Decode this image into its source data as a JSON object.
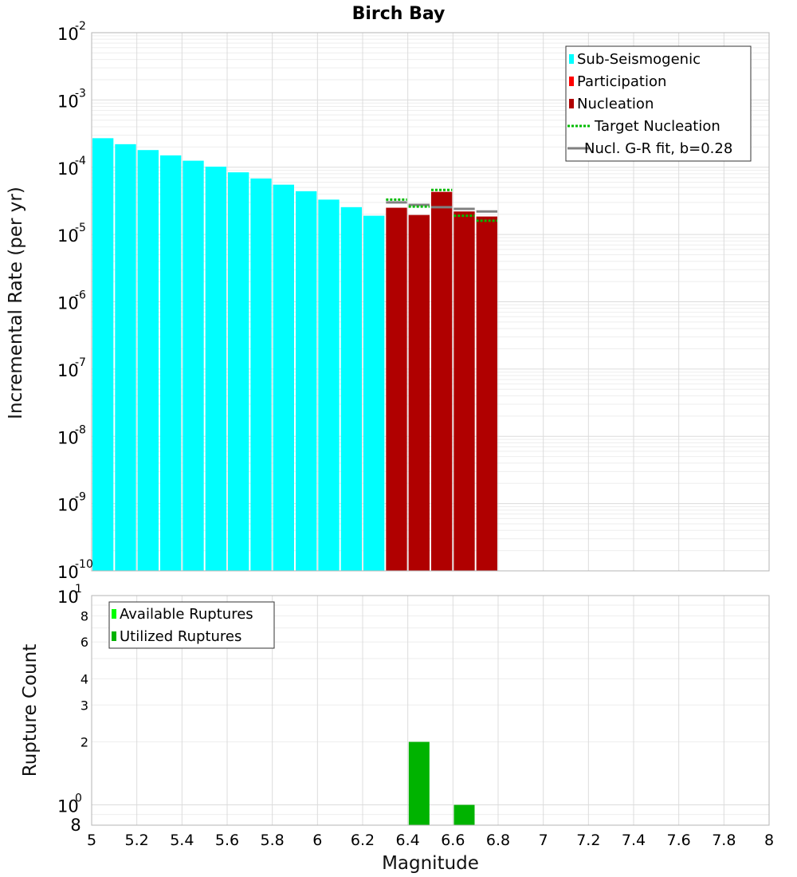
{
  "chart_data": [
    {
      "type": "bar",
      "title": "Birch Bay",
      "xlabel": "",
      "ylabel": "Incremental Rate (per yr)",
      "xlim": [
        5,
        8
      ],
      "ylim": [
        1e-10,
        0.01
      ],
      "yscale": "log",
      "y_ticks": [
        {
          "base": "10",
          "exp": "-2",
          "value": 0.01
        },
        {
          "base": "10",
          "exp": "-3",
          "value": 0.001
        },
        {
          "base": "10",
          "exp": "-4",
          "value": 0.0001
        },
        {
          "base": "10",
          "exp": "-5",
          "value": 1e-05
        },
        {
          "base": "10",
          "exp": "-6",
          "value": 1e-06
        },
        {
          "base": "10",
          "exp": "-7",
          "value": 1e-07
        },
        {
          "base": "10",
          "exp": "-8",
          "value": 1e-08
        },
        {
          "base": "10",
          "exp": "-9",
          "value": 1e-09
        },
        {
          "base": "10",
          "exp": "-10",
          "value": 1e-10
        }
      ],
      "grid": true,
      "legend_position": "top-right",
      "series": [
        {
          "name": "Sub-Seismogenic",
          "kind": "bar",
          "color": "#00ffff",
          "x": [
            5.05,
            5.15,
            5.25,
            5.35,
            5.45,
            5.55,
            5.65,
            5.75,
            5.85,
            5.95,
            6.05,
            6.15,
            6.25
          ],
          "y": [
            0.00027,
            0.00022,
            0.00018,
            0.00015,
            0.000125,
            0.000102,
            8.4e-05,
            6.8e-05,
            5.5e-05,
            4.4e-05,
            3.3e-05,
            2.55e-05,
            1.9e-05
          ]
        },
        {
          "name": "Participation",
          "kind": "bar",
          "color": "#ff0000",
          "x": [
            6.35,
            6.45,
            6.55,
            6.65,
            6.75
          ],
          "y": [
            2.5e-05,
            1.95e-05,
            4.3e-05,
            2.2e-05,
            1.85e-05
          ]
        },
        {
          "name": "Nucleation",
          "kind": "bar",
          "color": "#b00000",
          "x": [
            6.35,
            6.45,
            6.55,
            6.65,
            6.75
          ],
          "y": [
            2.5e-05,
            1.95e-05,
            4.3e-05,
            2.2e-05,
            1.85e-05
          ]
        },
        {
          "name": "Target Nucleation",
          "kind": "segment-dotted",
          "color": "#00bb00",
          "x": [
            6.35,
            6.45,
            6.55,
            6.65,
            6.75
          ],
          "y": [
            3.3e-05,
            2.6e-05,
            4.6e-05,
            1.9e-05,
            1.6e-05
          ]
        },
        {
          "name": "Nucl. G-R fit, b=0.28",
          "kind": "segment",
          "color": "#808080",
          "x": [
            6.35,
            6.45,
            6.55,
            6.65,
            6.75
          ],
          "y": [
            3e-05,
            2.75e-05,
            2.55e-05,
            2.4e-05,
            2.2e-05
          ]
        }
      ]
    },
    {
      "type": "bar",
      "title": "",
      "xlabel": "Magnitude",
      "ylabel": "Rupture Count",
      "xlim": [
        5,
        8
      ],
      "x_ticks": [
        "5",
        "5.2",
        "5.4",
        "5.6",
        "5.8",
        "6",
        "6.2",
        "6.4",
        "6.6",
        "6.8",
        "7",
        "7.2",
        "7.4",
        "7.6",
        "7.8",
        "8"
      ],
      "ylim": [
        0.8,
        10
      ],
      "yscale": "log",
      "y_major_ticks": [
        {
          "base": "10",
          "exp": "1",
          "value": 10
        },
        {
          "base": "10",
          "exp": "0",
          "value": 1
        }
      ],
      "y_minor_ticks": [
        "8",
        "6",
        "4",
        "3",
        "2",
        "8"
      ],
      "y_minor_values": [
        8,
        6,
        4,
        3,
        2,
        0.8
      ],
      "grid": true,
      "legend_position": "top-left",
      "series": [
        {
          "name": "Available Ruptures",
          "color": "#00ff00",
          "x": [
            6.45,
            6.65
          ],
          "y": [
            2,
            1
          ]
        },
        {
          "name": "Utilized Ruptures",
          "color": "#00b300",
          "x": [
            6.45,
            6.65
          ],
          "y": [
            2,
            1
          ]
        }
      ]
    }
  ]
}
